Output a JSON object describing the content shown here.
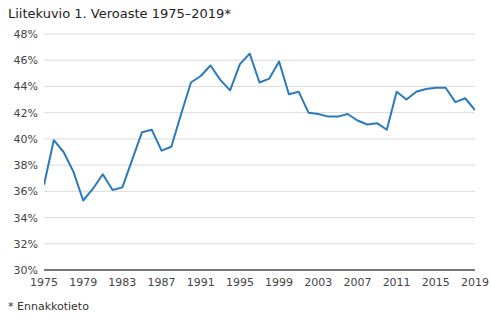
{
  "chart_data": {
    "type": "line",
    "title": "Liitekuvio 1. Veroaste 1975–2019*",
    "annotations": [
      "* Ennakkotieto"
    ],
    "x": [
      1975,
      1976,
      1977,
      1978,
      1979,
      1980,
      1981,
      1982,
      1983,
      1984,
      1985,
      1986,
      1987,
      1988,
      1989,
      1990,
      1991,
      1992,
      1993,
      1994,
      1995,
      1996,
      1997,
      1998,
      1999,
      2000,
      2001,
      2002,
      2003,
      2004,
      2005,
      2006,
      2007,
      2008,
      2009,
      2010,
      2011,
      2012,
      2013,
      2014,
      2015,
      2016,
      2017,
      2018,
      2019
    ],
    "values": [
      36.5,
      39.9,
      39.0,
      37.5,
      35.3,
      36.2,
      37.3,
      36.1,
      36.3,
      38.4,
      40.5,
      40.7,
      39.1,
      39.4,
      41.9,
      44.3,
      44.8,
      45.6,
      44.5,
      43.7,
      45.7,
      46.5,
      44.3,
      44.6,
      45.9,
      43.4,
      43.6,
      42.0,
      41.9,
      41.7,
      41.7,
      41.9,
      41.4,
      41.1,
      41.2,
      40.7,
      43.6,
      43.0,
      43.6,
      43.8,
      43.9,
      43.9,
      42.8,
      43.1,
      42.2
    ],
    "color": "#2b7bba",
    "xlim": [
      1975,
      2019
    ],
    "xticks": [
      1975,
      1979,
      1983,
      1987,
      1991,
      1995,
      1999,
      2003,
      2007,
      2011,
      2015,
      2019
    ],
    "ylim": [
      30,
      48
    ],
    "yticks": [
      {
        "value": 30,
        "label": "30%"
      },
      {
        "value": 32,
        "label": "32%"
      },
      {
        "value": 34,
        "label": "34%"
      },
      {
        "value": 36,
        "label": "36%"
      },
      {
        "value": 38,
        "label": "38%"
      },
      {
        "value": 40,
        "label": "40%"
      },
      {
        "value": 42,
        "label": "42%"
      },
      {
        "value": 44,
        "label": "44%"
      },
      {
        "value": 46,
        "label": "46%"
      },
      {
        "value": 48,
        "label": "48%"
      }
    ],
    "grid": true
  }
}
